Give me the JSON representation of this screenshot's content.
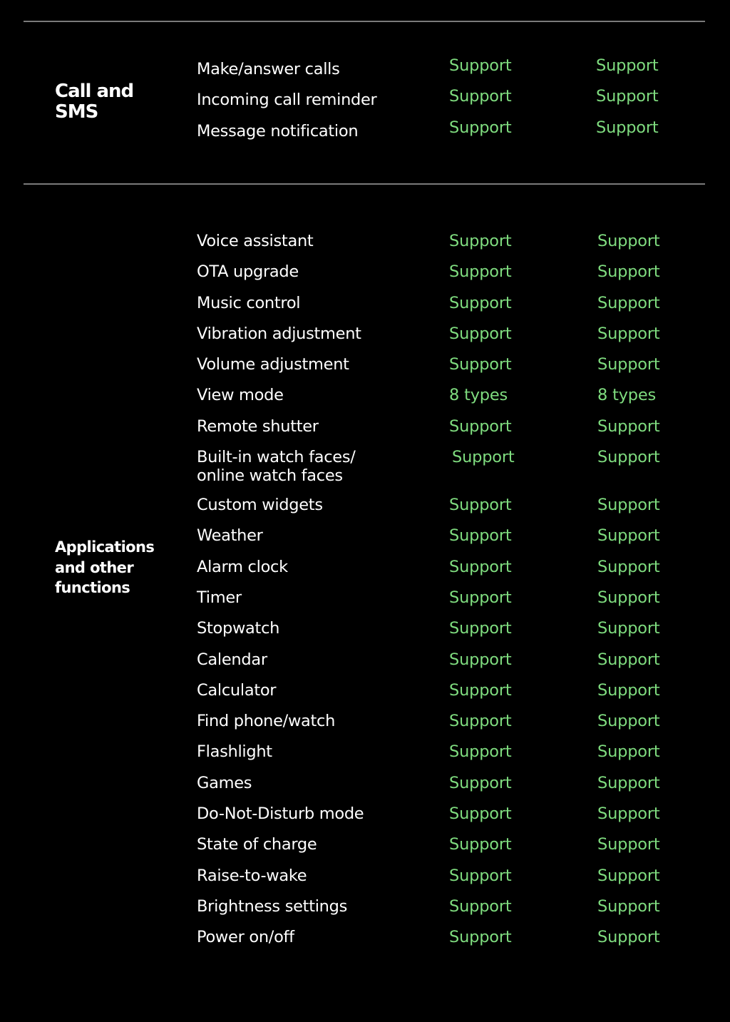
{
  "colors": {
    "support": "#7fdc7f",
    "text": "#ffffff",
    "background": "#000000",
    "rule": "#7a7a7a"
  },
  "sections": [
    {
      "label": "Call and\nSMS",
      "rows": [
        {
          "feature": "Make/answer calls",
          "v1": "Support",
          "v2": "Support"
        },
        {
          "feature": "Incoming call reminder",
          "v1": "Support",
          "v2": "Support"
        },
        {
          "feature": "Message notification",
          "v1": "Support",
          "v2": "Support"
        }
      ]
    },
    {
      "label": "Applications\nand other\nfunctions",
      "rows": [
        {
          "feature": "Voice assistant",
          "v1": "Support",
          "v2": "Support"
        },
        {
          "feature": "OTA upgrade",
          "v1": "Support",
          "v2": "Support"
        },
        {
          "feature": "Music control",
          "v1": "Support",
          "v2": "Support"
        },
        {
          "feature": "Vibration adjustment",
          "v1": "Support",
          "v2": "Support"
        },
        {
          "feature": "Volume adjustment",
          "v1": "Support",
          "v2": "Support"
        },
        {
          "feature": "View mode",
          "v1": "8  types",
          "v2": "8  types"
        },
        {
          "feature": "Remote shutter",
          "v1": "Support",
          "v2": "Support"
        },
        {
          "feature": "Built-in watch faces/\nonline watch faces",
          "v1": "Support",
          "v2": "Support"
        },
        {
          "feature": "Custom widgets",
          "v1": "Support",
          "v2": "Support"
        },
        {
          "feature": "Weather",
          "v1": "Support",
          "v2": "Support"
        },
        {
          "feature": "Alarm clock",
          "v1": "Support",
          "v2": "Support"
        },
        {
          "feature": "Timer",
          "v1": "Support",
          "v2": "Support"
        },
        {
          "feature": "Stopwatch",
          "v1": "Support",
          "v2": "Support"
        },
        {
          "feature": "Calendar",
          "v1": "Support",
          "v2": "Support"
        },
        {
          "feature": "Calculator",
          "v1": "Support",
          "v2": "Support"
        },
        {
          "feature": "Find phone/watch",
          "v1": "Support",
          "v2": "Support"
        },
        {
          "feature": "Flashlight",
          "v1": "Support",
          "v2": "Support"
        },
        {
          "feature": "Games",
          "v1": "Support",
          "v2": "Support"
        },
        {
          "feature": "Do-Not-Disturb mode",
          "v1": "Support",
          "v2": "Support"
        },
        {
          "feature": "State of charge",
          "v1": "Support",
          "v2": "Support"
        },
        {
          "feature": "Raise-to-wake",
          "v1": "Support",
          "v2": "Support"
        },
        {
          "feature": "Brightness settings",
          "v1": "Support",
          "v2": "Support"
        },
        {
          "feature": "Power on/off",
          "v1": "Support",
          "v2": "Support"
        }
      ]
    }
  ]
}
